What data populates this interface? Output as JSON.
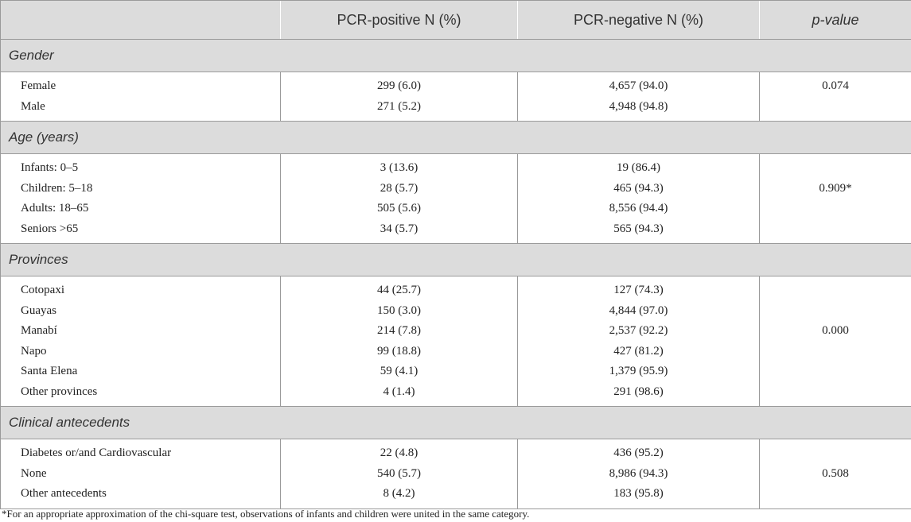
{
  "header": {
    "col1": "",
    "col2": "PCR-positive N (%)",
    "col3": "PCR-negative N (%)",
    "col4": "p-value"
  },
  "sections": [
    {
      "title": "Gender",
      "p_value": "0.074",
      "rows": [
        {
          "label": "Female",
          "pos": "299 (6.0)",
          "neg": "4,657 (94.0)"
        },
        {
          "label": "Male",
          "pos": "271 (5.2)",
          "neg": "4,948 (94.8)"
        }
      ]
    },
    {
      "title": "Age (years)",
      "p_value": "0.909*",
      "rows": [
        {
          "label": "Infants: 0–5",
          "pos": "3 (13.6)",
          "neg": "19 (86.4)"
        },
        {
          "label": "Children: 5–18",
          "pos": "28 (5.7)",
          "neg": "465 (94.3)"
        },
        {
          "label": "Adults: 18–65",
          "pos": "505 (5.6)",
          "neg": "8,556 (94.4)"
        },
        {
          "label": "Seniors >65",
          "pos": "34 (5.7)",
          "neg": "565 (94.3)"
        }
      ]
    },
    {
      "title": "Provinces",
      "p_value": "0.000",
      "rows": [
        {
          "label": "Cotopaxi",
          "pos": "44 (25.7)",
          "neg": "127 (74.3)"
        },
        {
          "label": "Guayas",
          "pos": "150 (3.0)",
          "neg": "4,844 (97.0)"
        },
        {
          "label": "Manabí",
          "pos": "214 (7.8)",
          "neg": "2,537 (92.2)"
        },
        {
          "label": "Napo",
          "pos": "99 (18.8)",
          "neg": "427 (81.2)"
        },
        {
          "label": "Santa Elena",
          "pos": "59 (4.1)",
          "neg": "1,379 (95.9)"
        },
        {
          "label": "Other provinces",
          "pos": "4 (1.4)",
          "neg": "291 (98.6)"
        }
      ]
    },
    {
      "title": "Clinical antecedents",
      "p_value": "0.508",
      "rows": [
        {
          "label": "Diabetes or/and Cardiovascular",
          "pos": "22 (4.8)",
          "neg": "436 (95.2)"
        },
        {
          "label": "None",
          "pos": "540 (5.7)",
          "neg": "8,986 (94.3)"
        },
        {
          "label": "Other antecedents",
          "pos": "8 (4.2)",
          "neg": "183 (95.8)"
        }
      ]
    }
  ],
  "footnote": "*For an appropriate approximation of the chi-square test, observations of infants and children were united in the same category."
}
